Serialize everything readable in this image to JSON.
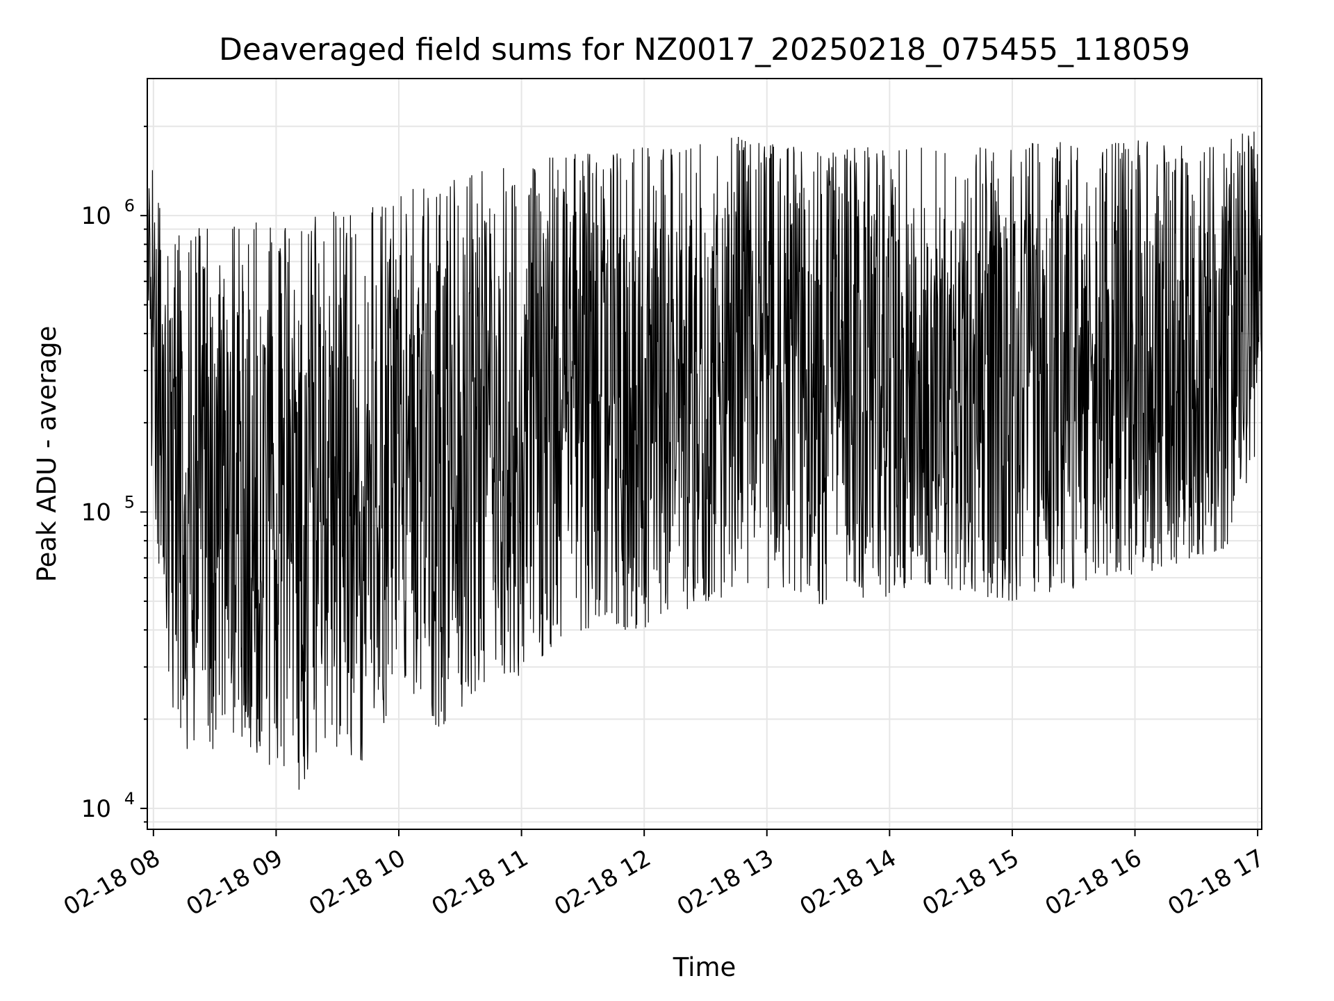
{
  "chart_data": {
    "type": "line",
    "title": "Deaveraged field sums for NZ0017_20250218_075455_118059",
    "xlabel": "Time",
    "ylabel": "Peak ADU - average",
    "yscale": "log",
    "ylim": [
      8500,
      2900000
    ],
    "xlim": [
      "2025-02-18T07:57",
      "2025-02-18T17:02"
    ],
    "grid": true,
    "line_color": "#000000",
    "grid_color": "#e6e6e6",
    "x_ticks": [
      {
        "label": "02-18 08",
        "value": "2025-02-18T08:00"
      },
      {
        "label": "02-18 09",
        "value": "2025-02-18T09:00"
      },
      {
        "label": "02-18 10",
        "value": "2025-02-18T10:00"
      },
      {
        "label": "02-18 11",
        "value": "2025-02-18T11:00"
      },
      {
        "label": "02-18 12",
        "value": "2025-02-18T12:00"
      },
      {
        "label": "02-18 13",
        "value": "2025-02-18T13:00"
      },
      {
        "label": "02-18 14",
        "value": "2025-02-18T14:00"
      },
      {
        "label": "02-18 15",
        "value": "2025-02-18T15:00"
      },
      {
        "label": "02-18 16",
        "value": "2025-02-18T16:00"
      },
      {
        "label": "02-18 17",
        "value": "2025-02-18T17:00"
      }
    ],
    "y_ticks": [
      {
        "base": "10",
        "exp": "4",
        "value": 10000
      },
      {
        "base": "10",
        "exp": "5",
        "value": 100000
      },
      {
        "base": "10",
        "exp": "6",
        "value": 1000000
      }
    ],
    "series": [
      {
        "x": [
          "2025-02-18T07:57",
          "2025-02-18T08:00",
          "2025-02-18T08:05",
          "2025-02-18T08:10",
          "2025-02-18T08:15",
          "2025-02-18T08:20",
          "2025-02-18T08:25",
          "2025-02-18T08:30",
          "2025-02-18T08:35",
          "2025-02-18T08:40",
          "2025-02-18T08:45",
          "2025-02-18T08:50",
          "2025-02-18T08:55",
          "2025-02-18T09:00",
          "2025-02-18T09:05",
          "2025-02-18T09:10",
          "2025-02-18T09:15",
          "2025-02-18T09:20",
          "2025-02-18T09:25",
          "2025-02-18T09:30",
          "2025-02-18T09:35",
          "2025-02-18T09:40",
          "2025-02-18T09:45",
          "2025-02-18T09:50",
          "2025-02-18T09:55",
          "2025-02-18T10:00",
          "2025-02-18T10:10",
          "2025-02-18T10:20",
          "2025-02-18T10:30",
          "2025-02-18T10:40",
          "2025-02-18T10:50",
          "2025-02-18T11:00",
          "2025-02-18T11:15",
          "2025-02-18T11:30",
          "2025-02-18T11:45",
          "2025-02-18T12:00",
          "2025-02-18T12:15",
          "2025-02-18T12:30",
          "2025-02-18T12:45",
          "2025-02-18T13:00",
          "2025-02-18T13:15",
          "2025-02-18T13:30",
          "2025-02-18T13:45",
          "2025-02-18T14:00",
          "2025-02-18T14:15",
          "2025-02-18T14:30",
          "2025-02-18T14:45",
          "2025-02-18T15:00",
          "2025-02-18T15:15",
          "2025-02-18T15:30",
          "2025-02-18T15:45",
          "2025-02-18T16:00",
          "2025-02-18T16:15",
          "2025-02-18T16:30",
          "2025-02-18T16:45",
          "2025-02-18T17:00",
          "2025-02-18T17:02"
        ],
        "y_min": [
          170000,
          120000,
          40000,
          20000,
          16000,
          15000,
          15000,
          16000,
          17000,
          18000,
          17000,
          15000,
          14000,
          13000,
          11000,
          11000,
          13000,
          15000,
          16000,
          16000,
          15000,
          14000,
          15000,
          18000,
          20000,
          24000,
          24000,
          18000,
          21000,
          26000,
          28000,
          28000,
          35000,
          40000,
          40000,
          40000,
          45000,
          50000,
          52000,
          52000,
          50000,
          48000,
          50000,
          52000,
          55000,
          55000,
          52000,
          50000,
          53000,
          55000,
          58000,
          60000,
          65000,
          70000,
          75000,
          160000,
          300000
        ],
        "y_max": [
          1200000,
          1500000,
          900000,
          900000,
          950000,
          900000,
          920000,
          950000,
          900000,
          920000,
          930000,
          950000,
          960000,
          980000,
          1000000,
          900000,
          980000,
          1000000,
          1000000,
          1050000,
          1000000,
          1050000,
          1100000,
          1100000,
          1100000,
          1150000,
          1300000,
          1250000,
          1350000,
          1450000,
          1500000,
          1550000,
          1600000,
          1650000,
          1650000,
          1700000,
          1700000,
          1800000,
          1850000,
          1750000,
          1700000,
          1650000,
          1700000,
          1700000,
          1700000,
          1750000,
          1700000,
          1700000,
          1800000,
          1750000,
          1750000,
          1800000,
          1750000,
          1700000,
          1800000,
          2000000,
          1600000
        ]
      }
    ]
  }
}
